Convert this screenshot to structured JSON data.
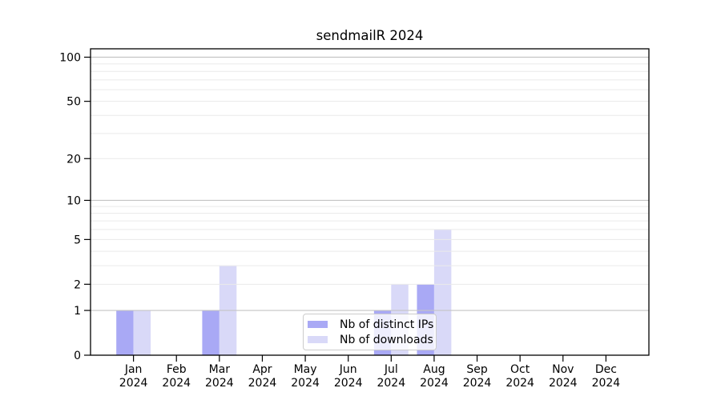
{
  "chart_data": {
    "type": "bar",
    "title": "sendmailR 2024",
    "categories": [
      "Jan",
      "Feb",
      "Mar",
      "Apr",
      "May",
      "Jun",
      "Jul",
      "Aug",
      "Sep",
      "Oct",
      "Nov",
      "Dec"
    ],
    "x_tick_line2": "2024",
    "series": [
      {
        "name": "Nb of distinct IPs",
        "color": "#a9a9f5",
        "values": [
          1,
          0,
          1,
          0,
          0,
          0,
          1,
          2,
          0,
          0,
          0,
          0
        ]
      },
      {
        "name": "Nb of downloads",
        "color": "#d9d9f8",
        "values": [
          1,
          0,
          3,
          0,
          0,
          0,
          2,
          6,
          0,
          0,
          0,
          0
        ]
      }
    ],
    "y_axis": {
      "scale": "log10(value+1)",
      "ylim": [
        0,
        114
      ],
      "tick_labels": [
        0,
        1,
        2,
        5,
        10,
        20,
        50,
        100
      ],
      "major_gridlines": [
        1,
        10,
        100
      ],
      "minor_gridlines": [
        2,
        3,
        4,
        5,
        6,
        7,
        8,
        9,
        20,
        30,
        40,
        50,
        60,
        70,
        80,
        90
      ]
    },
    "legend": {
      "position": "inside-bottom-center"
    },
    "grid": true,
    "colors": {
      "axis": "#000000",
      "text": "#000000",
      "major_grid": "#c4c4c4",
      "minor_grid": "#eaeaea"
    }
  }
}
